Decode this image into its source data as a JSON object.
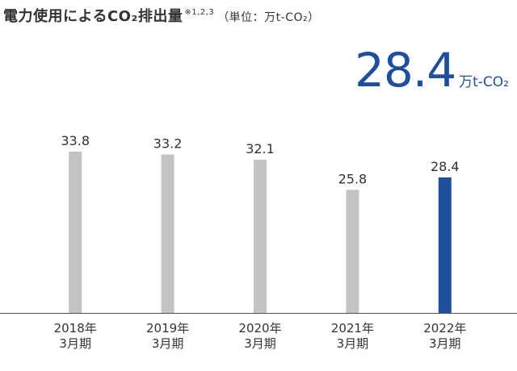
{
  "title": {
    "text": "電力使用によるCO₂排出量",
    "footnote": "※1,2,3",
    "unit_note": "（単位：万t-CO₂）"
  },
  "highlight": {
    "value": "28.4",
    "unit": "万t-CO₂",
    "color": "#1f4e9a"
  },
  "chart_data": {
    "type": "bar",
    "categories": [
      [
        "2018年",
        "3月期"
      ],
      [
        "2019年",
        "3月期"
      ],
      [
        "2020年",
        "3月期"
      ],
      [
        "2021年",
        "3月期"
      ],
      [
        "2022年",
        "3月期"
      ]
    ],
    "values": [
      33.8,
      33.2,
      32.1,
      25.8,
      28.4
    ],
    "data_labels": [
      "33.8",
      "33.2",
      "32.1",
      "25.8",
      "28.4"
    ],
    "ylim": [
      0,
      40
    ],
    "grid": false,
    "bar_colors": [
      "#c3c3c6",
      "#c3c3c6",
      "#c3c3c6",
      "#c3c3c6",
      "#1f4e9a"
    ]
  }
}
